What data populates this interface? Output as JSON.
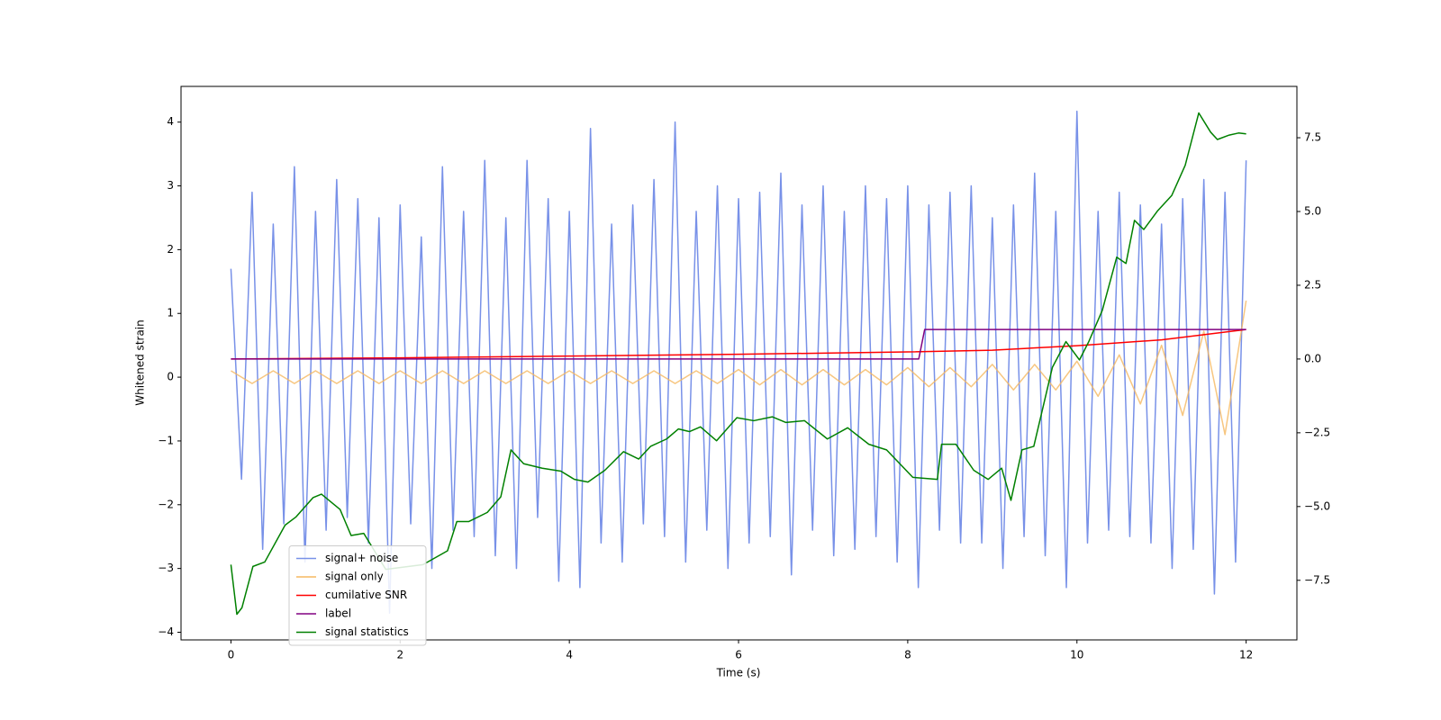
{
  "chart_data": {
    "type": "line",
    "xlabel": "Time (s)",
    "ylabel": "Whitened strain",
    "xlim": [
      -0.59,
      12.6
    ],
    "xticks": [
      0,
      2,
      4,
      6,
      8,
      10,
      12
    ],
    "ylim": [
      -4.12,
      4.56
    ],
    "yticks": [
      {
        "value": -4,
        "label": "−4"
      },
      {
        "value": -3,
        "label": "−3"
      },
      {
        "value": -2,
        "label": "−2"
      },
      {
        "value": -1,
        "label": "−1"
      },
      0,
      1,
      2,
      3,
      4
    ],
    "y2lim": [
      -9.52,
      9.24
    ],
    "y2ticks": [
      {
        "value": -7.5,
        "label": "−7.5"
      },
      {
        "value": -5,
        "label": "−5.0"
      },
      {
        "value": -2.5,
        "label": "−2.5"
      },
      {
        "value": 0,
        "label": "0.0"
      },
      2.5,
      {
        "value": 5,
        "label": "5.0"
      },
      7.5
    ],
    "grid": false,
    "legend": "lower left",
    "series": [
      {
        "name": "signal+ noise",
        "color": "#7891e8",
        "x": [
          0,
          0.125,
          0.25,
          0.375,
          0.5,
          0.625,
          0.75,
          0.875,
          1,
          1.125,
          1.25,
          1.375,
          1.5,
          1.625,
          1.75,
          1.875,
          2,
          2.125,
          2.25,
          2.375,
          2.5,
          2.625,
          2.75,
          2.875,
          3,
          3.125,
          3.25,
          3.375,
          3.5,
          3.625,
          3.75,
          3.875,
          4,
          4.125,
          4.25,
          4.375,
          4.5,
          4.625,
          4.75,
          4.875,
          5,
          5.125,
          5.25,
          5.375,
          5.5,
          5.625,
          5.75,
          5.875,
          6,
          6.125,
          6.25,
          6.375,
          6.5,
          6.625,
          6.75,
          6.875,
          7,
          7.125,
          7.25,
          7.375,
          7.5,
          7.625,
          7.75,
          7.875,
          8,
          8.125,
          8.25,
          8.375,
          8.5,
          8.625,
          8.75,
          8.875,
          9,
          9.125,
          9.25,
          9.375,
          9.5,
          9.625,
          9.75,
          9.875,
          10,
          10.125,
          10.25,
          10.375,
          10.5,
          10.625,
          10.75,
          10.875,
          11,
          11.125,
          11.25,
          11.375,
          11.5,
          11.625,
          11.75,
          11.875,
          12
        ],
        "values": [
          1.7,
          -1.6,
          2.9,
          -2.7,
          2.4,
          -2.3,
          3.3,
          -2.9,
          2.6,
          -2.4,
          3.1,
          -2.2,
          2.8,
          -2.6,
          2.5,
          -3.7,
          2.7,
          -2.3,
          2.2,
          -3.0,
          3.3,
          -2.4,
          2.6,
          -2.5,
          3.4,
          -2.8,
          2.5,
          -3.0,
          3.4,
          -2.2,
          2.8,
          -3.2,
          2.6,
          -3.3,
          3.9,
          -2.6,
          2.4,
          -2.9,
          2.7,
          -2.3,
          3.1,
          -2.5,
          4.0,
          -2.9,
          2.6,
          -2.4,
          3.0,
          -3.0,
          2.8,
          -2.6,
          2.9,
          -2.5,
          3.2,
          -3.1,
          2.7,
          -2.4,
          3.0,
          -2.8,
          2.6,
          -2.7,
          3.0,
          -2.5,
          2.8,
          -2.9,
          3.0,
          -3.3,
          2.7,
          -2.4,
          2.9,
          -2.6,
          3.0,
          -2.6,
          2.5,
          -3.0,
          2.7,
          -2.5,
          3.2,
          -2.8,
          2.6,
          -3.3,
          4.17,
          -2.6,
          2.6,
          -2.4,
          2.9,
          -2.5,
          2.7,
          -2.6,
          2.4,
          -3.0,
          2.8,
          -2.7,
          3.1,
          -3.4,
          2.9,
          -2.9,
          3.4
        ]
      },
      {
        "name": "signal only",
        "color": "#f5b860",
        "x": [
          0,
          0.25,
          0.5,
          0.75,
          1,
          1.25,
          1.5,
          1.75,
          2,
          2.25,
          2.5,
          2.75,
          3,
          3.25,
          3.5,
          3.75,
          4,
          4.25,
          4.5,
          4.75,
          5,
          5.25,
          5.5,
          5.75,
          6,
          6.25,
          6.5,
          6.75,
          7,
          7.25,
          7.5,
          7.75,
          8,
          8.25,
          8.5,
          8.75,
          9,
          9.25,
          9.5,
          9.75,
          10,
          10.25,
          10.5,
          10.75,
          11,
          11.25,
          11.5,
          11.75,
          12
        ],
        "values": [
          0.1,
          -0.1,
          0.1,
          -0.1,
          0.1,
          -0.1,
          0.1,
          -0.1,
          0.1,
          -0.1,
          0.1,
          -0.1,
          0.1,
          -0.1,
          0.1,
          -0.1,
          0.1,
          -0.1,
          0.1,
          -0.1,
          0.1,
          -0.1,
          0.1,
          -0.1,
          0.12,
          -0.12,
          0.12,
          -0.12,
          0.12,
          -0.12,
          0.12,
          -0.12,
          0.15,
          -0.15,
          0.15,
          -0.15,
          0.2,
          -0.2,
          0.2,
          -0.2,
          0.25,
          -0.3,
          0.35,
          -0.42,
          0.5,
          -0.6,
          0.72,
          -0.9,
          1.2
        ]
      },
      {
        "name": "cumilative SNR",
        "color": "red",
        "axis": "y2",
        "x": [
          0,
          1,
          2,
          3,
          4,
          5,
          6,
          7,
          8,
          9,
          10,
          11,
          12
        ],
        "values": [
          0,
          0.02,
          0.04,
          0.07,
          0.1,
          0.13,
          0.16,
          0.2,
          0.24,
          0.3,
          0.45,
          0.65,
          1.0
        ]
      },
      {
        "name": "label",
        "color": "purple",
        "axis": "y2",
        "x": [
          0,
          8.13,
          8.2,
          12
        ],
        "values": [
          0,
          0,
          1,
          1
        ]
      },
      {
        "name": "signal statistics",
        "color": "green",
        "axis": "y2",
        "x": [
          0,
          0.07,
          0.13,
          0.26,
          0.4,
          0.64,
          0.77,
          0.97,
          1.07,
          1.29,
          1.42,
          1.57,
          1.83,
          2.27,
          2.56,
          2.67,
          2.81,
          3.03,
          3.19,
          3.31,
          3.46,
          3.68,
          3.9,
          4.06,
          4.22,
          4.42,
          4.64,
          4.82,
          4.96,
          5.15,
          5.29,
          5.42,
          5.55,
          5.74,
          5.98,
          6.18,
          6.4,
          6.56,
          6.78,
          7.05,
          7.29,
          7.54,
          7.75,
          8.06,
          8.35,
          8.4,
          8.57,
          8.78,
          8.95,
          9.11,
          9.22,
          9.35,
          9.49,
          9.71,
          9.87,
          10.03,
          10.14,
          10.3,
          10.47,
          10.58,
          10.68,
          10.79,
          10.95,
          11.12,
          11.28,
          11.44,
          11.58,
          11.66,
          11.8,
          11.91,
          12
        ],
        "values": [
          -6.97,
          -8.65,
          -8.43,
          -7.03,
          -6.88,
          -5.63,
          -5.35,
          -4.7,
          -4.58,
          -5.1,
          -5.98,
          -5.91,
          -7.13,
          -6.97,
          -6.5,
          -5.51,
          -5.51,
          -5.2,
          -4.67,
          -3.08,
          -3.55,
          -3.7,
          -3.8,
          -4.08,
          -4.17,
          -3.77,
          -3.14,
          -3.39,
          -2.96,
          -2.71,
          -2.37,
          -2.46,
          -2.3,
          -2.77,
          -1.99,
          -2.09,
          -1.96,
          -2.15,
          -2.09,
          -2.71,
          -2.33,
          -2.89,
          -3.08,
          -4.01,
          -4.08,
          -2.89,
          -2.89,
          -3.77,
          -4.08,
          -3.7,
          -4.79,
          -3.08,
          -2.96,
          -0.28,
          0.59,
          -0.03,
          0.59,
          1.65,
          3.45,
          3.24,
          4.7,
          4.39,
          5.01,
          5.54,
          6.57,
          8.34,
          7.69,
          7.44,
          7.59,
          7.66,
          7.63
        ]
      }
    ]
  }
}
